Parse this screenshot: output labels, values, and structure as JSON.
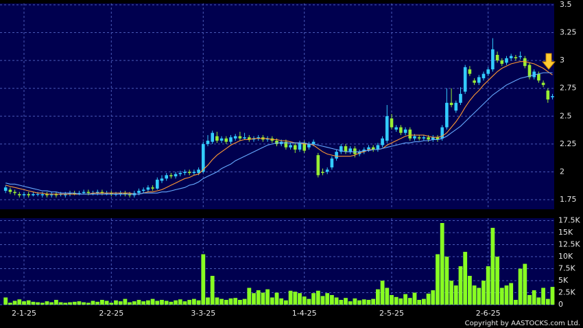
{
  "chart_data": {
    "type": "candlestick",
    "categories": [
      null,
      null,
      null,
      null,
      "2-1-25",
      null,
      null,
      null,
      null,
      null,
      null,
      null,
      null,
      null,
      null,
      null,
      null,
      null,
      null,
      null,
      null,
      null,
      null,
      "2-2-25",
      null,
      null,
      null,
      null,
      null,
      null,
      null,
      null,
      null,
      null,
      null,
      null,
      null,
      null,
      null,
      null,
      null,
      null,
      null,
      "3-3-25",
      null,
      null,
      null,
      null,
      null,
      null,
      null,
      null,
      null,
      null,
      null,
      null,
      null,
      null,
      null,
      null,
      null,
      null,
      null,
      null,
      null,
      "1-4-25",
      null,
      null,
      null,
      null,
      null,
      null,
      null,
      null,
      null,
      null,
      null,
      null,
      null,
      null,
      null,
      null,
      null,
      null,
      "2-5-25",
      null,
      null,
      null,
      null,
      null,
      null,
      null,
      null,
      null,
      null,
      null,
      null,
      null,
      null,
      null,
      null,
      null,
      null,
      null,
      null,
      "2-6-25",
      null,
      null,
      null,
      null,
      null,
      null,
      null,
      null,
      null,
      null,
      null,
      null,
      null,
      null
    ],
    "open": [
      1.83,
      1.84,
      1.82,
      1.8,
      1.79,
      1.8,
      1.79,
      1.8,
      1.79,
      1.8,
      1.79,
      1.8,
      1.8,
      1.79,
      1.8,
      1.81,
      1.8,
      1.81,
      1.82,
      1.81,
      1.81,
      1.82,
      1.81,
      1.81,
      1.8,
      1.8,
      1.81,
      1.8,
      1.79,
      1.81,
      1.83,
      1.84,
      1.86,
      1.85,
      1.92,
      1.94,
      1.97,
      1.96,
      1.98,
      1.99,
      2.0,
      1.99,
      1.99,
      2.0,
      2.25,
      2.27,
      2.32,
      2.28,
      2.3,
      2.27,
      2.3,
      2.32,
      2.3,
      2.31,
      2.29,
      2.3,
      2.31,
      2.29,
      2.3,
      2.28,
      2.25,
      2.27,
      2.22,
      2.24,
      2.2,
      2.26,
      2.22,
      2.25,
      2.15,
      2.0,
      2.0,
      2.04,
      2.12,
      2.18,
      2.23,
      2.18,
      2.21,
      2.16,
      2.18,
      2.2,
      2.22,
      2.2,
      2.24,
      2.28,
      2.48,
      2.38,
      2.4,
      2.35,
      2.38,
      2.3,
      2.31,
      2.3,
      2.31,
      2.29,
      2.31,
      2.3,
      2.4,
      2.62,
      2.55,
      2.62,
      2.72,
      2.92,
      2.82,
      2.8,
      2.84,
      2.88,
      2.92,
      3.05,
      3.0,
      2.98,
      3.02,
      3.03,
      3.03,
      3.02,
      2.96,
      2.85,
      2.88,
      2.8,
      2.73,
      2.67
    ],
    "high": [
      1.88,
      1.86,
      1.84,
      1.82,
      1.82,
      1.82,
      1.82,
      1.82,
      1.82,
      1.82,
      1.82,
      1.82,
      1.82,
      1.82,
      1.83,
      1.83,
      1.83,
      1.84,
      1.84,
      1.83,
      1.84,
      1.84,
      1.83,
      1.83,
      1.82,
      1.83,
      1.83,
      1.82,
      1.83,
      1.85,
      1.86,
      1.88,
      1.88,
      1.95,
      1.97,
      1.99,
      1.99,
      2.0,
      2.01,
      2.02,
      2.02,
      2.02,
      2.04,
      2.27,
      2.33,
      2.37,
      2.36,
      2.32,
      2.32,
      2.33,
      2.34,
      2.36,
      2.35,
      2.33,
      2.32,
      2.33,
      2.33,
      2.32,
      2.32,
      2.3,
      2.29,
      2.29,
      2.26,
      2.26,
      2.28,
      2.28,
      2.27,
      2.29,
      2.17,
      2.03,
      2.04,
      2.14,
      2.2,
      2.25,
      2.25,
      2.23,
      2.23,
      2.2,
      2.22,
      2.24,
      2.24,
      2.26,
      2.32,
      2.6,
      2.52,
      2.42,
      2.42,
      2.4,
      2.4,
      2.34,
      2.33,
      2.33,
      2.33,
      2.33,
      2.33,
      2.42,
      2.75,
      2.75,
      2.64,
      2.76,
      2.96,
      2.95,
      2.84,
      2.87,
      2.9,
      2.94,
      3.2,
      3.08,
      3.02,
      3.04,
      3.06,
      3.05,
      3.08,
      3.04,
      2.98,
      2.92,
      2.9,
      2.82,
      2.75,
      2.7
    ],
    "low": [
      1.81,
      1.8,
      1.79,
      1.77,
      1.77,
      1.77,
      1.78,
      1.78,
      1.77,
      1.77,
      1.77,
      1.77,
      1.78,
      1.77,
      1.78,
      1.79,
      1.79,
      1.8,
      1.79,
      1.79,
      1.79,
      1.79,
      1.79,
      1.78,
      1.78,
      1.78,
      1.78,
      1.77,
      1.77,
      1.79,
      1.81,
      1.82,
      1.83,
      1.84,
      1.9,
      1.92,
      1.94,
      1.94,
      1.96,
      1.97,
      1.97,
      1.97,
      1.97,
      1.99,
      2.23,
      2.25,
      2.26,
      2.26,
      2.25,
      2.25,
      2.28,
      2.28,
      2.29,
      2.27,
      2.27,
      2.28,
      2.27,
      2.27,
      2.26,
      2.23,
      2.23,
      2.2,
      2.2,
      2.17,
      2.18,
      2.17,
      2.2,
      2.23,
      1.95,
      1.97,
      1.98,
      2.02,
      2.1,
      2.16,
      2.16,
      2.16,
      2.13,
      2.14,
      2.16,
      2.18,
      2.18,
      2.18,
      2.22,
      2.26,
      2.38,
      2.36,
      2.33,
      2.33,
      2.28,
      2.28,
      2.28,
      2.28,
      2.27,
      2.27,
      2.27,
      2.28,
      2.38,
      2.58,
      2.53,
      2.6,
      2.7,
      2.86,
      2.78,
      2.78,
      2.82,
      2.86,
      2.9,
      2.98,
      2.95,
      2.96,
      3.0,
      3.0,
      3.01,
      2.93,
      2.83,
      2.83,
      2.8,
      2.76,
      2.62,
      2.65
    ],
    "close": [
      1.86,
      1.82,
      1.81,
      1.79,
      1.8,
      1.79,
      1.8,
      1.8,
      1.8,
      1.79,
      1.8,
      1.79,
      1.8,
      1.8,
      1.81,
      1.8,
      1.81,
      1.82,
      1.81,
      1.81,
      1.82,
      1.81,
      1.81,
      1.8,
      1.8,
      1.81,
      1.8,
      1.79,
      1.81,
      1.83,
      1.84,
      1.86,
      1.85,
      1.93,
      1.94,
      1.97,
      1.96,
      1.98,
      1.99,
      2.0,
      1.99,
      2.0,
      2.02,
      2.25,
      2.28,
      2.35,
      2.28,
      2.3,
      2.27,
      2.31,
      2.32,
      2.3,
      2.31,
      2.29,
      2.3,
      2.31,
      2.29,
      2.3,
      2.28,
      2.25,
      2.27,
      2.22,
      2.24,
      2.2,
      2.26,
      2.19,
      2.25,
      2.27,
      1.97,
      1.99,
      2.02,
      2.12,
      2.18,
      2.23,
      2.18,
      2.21,
      2.16,
      2.18,
      2.2,
      2.22,
      2.2,
      2.24,
      2.3,
      2.5,
      2.4,
      2.4,
      2.35,
      2.38,
      2.3,
      2.32,
      2.3,
      2.31,
      2.29,
      2.31,
      2.29,
      2.4,
      2.62,
      2.6,
      2.62,
      2.7,
      2.94,
      2.88,
      2.8,
      2.85,
      2.88,
      2.92,
      3.1,
      3.0,
      2.97,
      3.02,
      3.04,
      3.02,
      3.04,
      2.95,
      2.85,
      2.9,
      2.82,
      2.78,
      2.65,
      2.68
    ],
    "up_color": "#33ccff",
    "down_color": "#99ee33",
    "lines": [
      {
        "color": "#ff9933",
        "values": [
          1.88,
          1.87,
          1.86,
          1.85,
          1.84,
          1.83,
          1.82,
          1.81,
          1.81,
          1.8,
          1.8,
          1.8,
          1.8,
          1.8,
          1.8,
          1.8,
          1.8,
          1.8,
          1.8,
          1.81,
          1.81,
          1.81,
          1.81,
          1.81,
          1.81,
          1.81,
          1.81,
          1.81,
          1.8,
          1.8,
          1.81,
          1.82,
          1.82,
          1.83,
          1.84,
          1.86,
          1.88,
          1.9,
          1.92,
          1.94,
          1.95,
          1.97,
          1.98,
          2.02,
          2.06,
          2.11,
          2.15,
          2.18,
          2.21,
          2.24,
          2.26,
          2.28,
          2.29,
          2.29,
          2.3,
          2.3,
          2.3,
          2.3,
          2.29,
          2.29,
          2.28,
          2.28,
          2.27,
          2.26,
          2.26,
          2.25,
          2.25,
          2.24,
          2.21,
          2.18,
          2.16,
          2.15,
          2.14,
          2.14,
          2.14,
          2.14,
          2.15,
          2.17,
          2.18,
          2.2,
          2.2,
          2.2,
          2.21,
          2.24,
          2.26,
          2.28,
          2.3,
          2.32,
          2.33,
          2.33,
          2.33,
          2.33,
          2.32,
          2.31,
          2.31,
          2.32,
          2.35,
          2.4,
          2.45,
          2.51,
          2.58,
          2.64,
          2.69,
          2.73,
          2.78,
          2.82,
          2.86,
          2.9,
          2.93,
          2.95,
          2.97,
          2.98,
          2.99,
          2.99,
          2.98,
          2.97,
          2.95,
          2.93,
          2.9,
          2.87
        ]
      },
      {
        "color": "#66aaff",
        "values": [
          1.9,
          1.89,
          1.89,
          1.88,
          1.87,
          1.86,
          1.85,
          1.84,
          1.83,
          1.83,
          1.82,
          1.82,
          1.81,
          1.81,
          1.81,
          1.81,
          1.8,
          1.8,
          1.8,
          1.8,
          1.8,
          1.8,
          1.8,
          1.8,
          1.8,
          1.8,
          1.8,
          1.8,
          1.8,
          1.8,
          1.81,
          1.81,
          1.81,
          1.81,
          1.82,
          1.82,
          1.83,
          1.84,
          1.85,
          1.86,
          1.88,
          1.89,
          1.91,
          1.94,
          1.96,
          1.98,
          2.0,
          2.03,
          2.05,
          2.07,
          2.1,
          2.12,
          2.14,
          2.16,
          2.18,
          2.2,
          2.22,
          2.24,
          2.25,
          2.26,
          2.26,
          2.26,
          2.26,
          2.26,
          2.26,
          2.26,
          2.25,
          2.25,
          2.24,
          2.23,
          2.22,
          2.21,
          2.2,
          2.19,
          2.18,
          2.18,
          2.18,
          2.18,
          2.19,
          2.19,
          2.2,
          2.2,
          2.21,
          2.22,
          2.23,
          2.24,
          2.25,
          2.26,
          2.26,
          2.27,
          2.27,
          2.28,
          2.28,
          2.29,
          2.29,
          2.3,
          2.32,
          2.35,
          2.38,
          2.41,
          2.45,
          2.49,
          2.53,
          2.57,
          2.61,
          2.65,
          2.69,
          2.72,
          2.75,
          2.78,
          2.8,
          2.82,
          2.84,
          2.85,
          2.86,
          2.87,
          2.88,
          2.89,
          2.89,
          2.89
        ]
      }
    ],
    "ylim": [
      1.664,
      3.512
    ],
    "yticks": [
      1.75,
      2,
      2.25,
      2.5,
      2.75,
      3,
      3.25,
      3.5
    ],
    "grid": true,
    "volume": {
      "color": "#88ff22",
      "values": [
        1500,
        400,
        800,
        1100,
        700,
        900,
        600,
        500,
        400,
        700,
        500,
        1000,
        500,
        400,
        500,
        600,
        700,
        500,
        400,
        800,
        600,
        1000,
        800,
        400,
        900,
        700,
        1200,
        500,
        700,
        1000,
        700,
        900,
        1200,
        800,
        1000,
        800,
        600,
        900,
        1100,
        700,
        1000,
        1200,
        900,
        10500,
        1500,
        6000,
        1500,
        1200,
        1000,
        1300,
        1400,
        1000,
        1200,
        3500,
        2400,
        3000,
        2500,
        3200,
        1500,
        2500,
        1300,
        900,
        2900,
        2700,
        2400,
        1700,
        1200,
        2400,
        2900,
        1800,
        2400,
        2000,
        1500,
        1000,
        1400,
        700,
        1300,
        900,
        1100,
        1000,
        1200,
        3200,
        5000,
        3500,
        2000,
        1600,
        1300,
        2200,
        1400,
        2500,
        1000,
        1200,
        2300,
        3000,
        10500,
        17000,
        10000,
        5000,
        4000,
        8000,
        11000,
        6000,
        4000,
        3500,
        5000,
        8000,
        16000,
        10000,
        3500,
        4000,
        4500,
        1000,
        7500,
        8500,
        2000,
        3000,
        1500,
        3500,
        1200,
        3700
      ],
      "ylim": [
        0,
        18000
      ],
      "yticks": [
        0,
        {
          "value": 2500,
          "label": "2.5K"
        },
        {
          "value": 5000,
          "label": "5K"
        },
        {
          "value": 7500,
          "label": "7.5K"
        },
        {
          "value": 10000,
          "label": "10K"
        },
        {
          "value": 12500,
          "label": "12.5K"
        },
        {
          "value": 15000,
          "label": "15K"
        },
        {
          "value": 17500,
          "label": "17.5K"
        }
      ]
    },
    "copyright": "Copyright by AASTOCKS.com Ltd."
  }
}
